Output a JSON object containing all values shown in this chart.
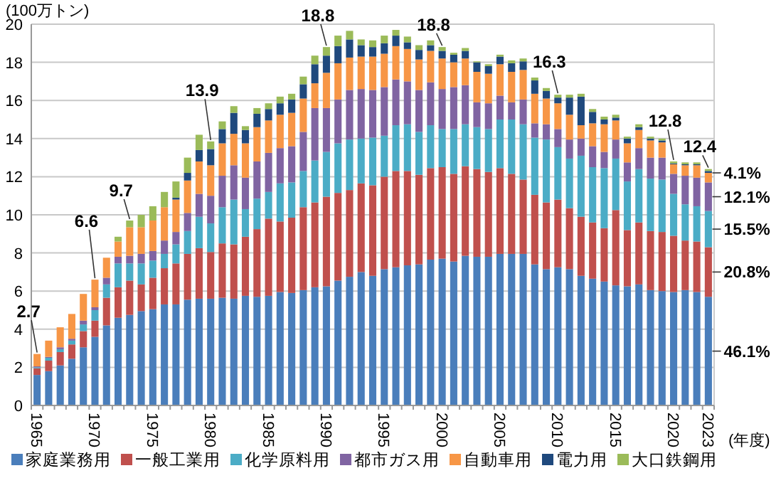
{
  "chart_data": {
    "type": "bar",
    "stacked": true,
    "ylabel": "(100万トン)",
    "xlabel": "(年度)",
    "categories": [
      "1965",
      null,
      null,
      null,
      null,
      "1970",
      null,
      null,
      null,
      null,
      "1975",
      null,
      null,
      null,
      null,
      "1980",
      null,
      null,
      null,
      null,
      "1985",
      null,
      null,
      null,
      null,
      "1990",
      null,
      null,
      null,
      null,
      "1995",
      null,
      null,
      null,
      null,
      "2000",
      null,
      null,
      null,
      null,
      "2005",
      null,
      null,
      null,
      null,
      "2010",
      null,
      null,
      null,
      null,
      "2015",
      null,
      null,
      null,
      null,
      "2020",
      null,
      null,
      "2023"
    ],
    "ylim": [
      0,
      20
    ],
    "yticks": [
      0,
      2,
      4,
      6,
      8,
      10,
      12,
      14,
      16,
      18,
      20
    ],
    "grid": "y",
    "legend": "bottom",
    "series": [
      {
        "name": "家庭業務用",
        "color": "#4a7ebb",
        "values": [
          1.6,
          1.8,
          2.1,
          2.45,
          3.05,
          3.6,
          4.2,
          4.6,
          4.75,
          4.95,
          5.05,
          5.3,
          5.3,
          5.55,
          5.6,
          5.6,
          5.65,
          5.6,
          5.75,
          5.7,
          5.75,
          5.95,
          5.9,
          6.05,
          6.2,
          6.25,
          6.55,
          6.75,
          7.0,
          6.8,
          7.15,
          7.25,
          7.35,
          7.4,
          7.65,
          7.7,
          7.55,
          7.85,
          7.8,
          7.8,
          7.95,
          7.95,
          7.95,
          7.4,
          7.15,
          7.25,
          7.15,
          6.8,
          6.65,
          6.5,
          6.3,
          6.25,
          6.35,
          6.05,
          6.0,
          5.95,
          6.05,
          5.95,
          5.7
        ]
      },
      {
        "name": "一般工業用",
        "color": "#c0504d",
        "values": [
          0.35,
          0.55,
          0.7,
          0.75,
          0.85,
          0.85,
          1.45,
          1.6,
          1.8,
          1.4,
          1.65,
          1.9,
          2.15,
          2.4,
          2.65,
          2.45,
          2.85,
          2.85,
          3.1,
          3.55,
          4.05,
          3.7,
          3.95,
          4.35,
          4.45,
          4.7,
          4.6,
          4.55,
          4.65,
          4.75,
          4.85,
          5.05,
          4.95,
          4.7,
          4.8,
          4.8,
          4.6,
          4.7,
          4.6,
          4.45,
          4.5,
          4.2,
          3.9,
          3.65,
          3.5,
          3.55,
          3.2,
          3.1,
          2.95,
          2.8,
          3.95,
          2.95,
          3.25,
          3.1,
          3.1,
          2.95,
          2.6,
          2.65,
          2.6
        ]
      },
      {
        "name": "化学原料用",
        "color": "#4bacc6",
        "values": [
          0.05,
          0.15,
          0.15,
          0.2,
          0.35,
          0.55,
          0.7,
          1.25,
          0.9,
          1.1,
          0.9,
          0.75,
          1.0,
          1.2,
          1.65,
          1.5,
          1.9,
          2.35,
          1.45,
          1.6,
          1.4,
          2.0,
          1.85,
          1.9,
          2.2,
          2.35,
          2.6,
          2.65,
          2.35,
          2.5,
          2.15,
          2.4,
          2.45,
          2.25,
          2.25,
          2.0,
          2.35,
          2.2,
          2.2,
          2.25,
          2.55,
          2.85,
          2.9,
          3.0,
          3.3,
          2.75,
          2.6,
          3.2,
          2.9,
          3.15,
          2.7,
          2.55,
          2.8,
          2.75,
          2.75,
          2.2,
          1.9,
          1.85,
          1.9
        ]
      },
      {
        "name": "都市ガス用",
        "color": "#8064a2",
        "values": [
          0.05,
          0.05,
          0.1,
          0.1,
          0.2,
          0.15,
          0.35,
          0.35,
          0.4,
          0.5,
          0.5,
          0.7,
          0.65,
          0.95,
          1.2,
          1.45,
          1.65,
          1.8,
          1.65,
          1.95,
          2.05,
          1.85,
          1.9,
          2.05,
          2.75,
          2.3,
          2.3,
          2.6,
          2.6,
          2.5,
          2.55,
          2.4,
          2.25,
          2.2,
          2.25,
          2.1,
          2.2,
          2.05,
          1.3,
          1.35,
          1.25,
          0.9,
          1.3,
          0.75,
          0.8,
          0.95,
          1.0,
          0.9,
          1.1,
          0.85,
          1.0,
          1.0,
          1.1,
          1.1,
          1.15,
          1.05,
          1.5,
          1.5,
          1.5
        ]
      },
      {
        "name": "自動車用",
        "color": "#f79646",
        "values": [
          0.65,
          0.85,
          1.05,
          1.3,
          1.4,
          1.45,
          1.05,
          0.8,
          1.5,
          1.4,
          1.6,
          1.75,
          1.7,
          1.7,
          1.7,
          1.6,
          1.7,
          1.65,
          1.8,
          1.8,
          1.7,
          1.75,
          1.75,
          1.75,
          1.3,
          1.85,
          1.9,
          1.7,
          1.7,
          1.75,
          1.75,
          1.75,
          1.7,
          1.6,
          1.65,
          1.6,
          1.3,
          1.4,
          1.6,
          1.55,
          1.65,
          1.6,
          1.55,
          1.55,
          1.35,
          1.35,
          1.3,
          0.7,
          1.2,
          1.45,
          1.0,
          1.0,
          0.95,
          0.9,
          0.8,
          0.5,
          0.55,
          0.65,
          0.5
        ]
      },
      {
        "name": "電力用",
        "color": "#1f497d",
        "values": [
          0,
          0,
          0,
          0,
          0,
          0,
          0,
          0,
          0,
          0,
          0,
          0,
          0.1,
          0.4,
          0.6,
          0.85,
          0.75,
          1.1,
          0.7,
          0.7,
          0.6,
          0.6,
          0.7,
          0.75,
          1.0,
          0.9,
          0.9,
          0.95,
          0.6,
          0.5,
          0.55,
          0.55,
          0.35,
          0.5,
          0.3,
          0.4,
          0.4,
          0.4,
          0.5,
          0.4,
          0.4,
          0.45,
          0.45,
          0.7,
          0.4,
          0.3,
          0.9,
          1.5,
          0.6,
          0.25,
          0.15,
          0.25,
          0.15,
          0.1,
          0.1,
          0.05,
          0.05,
          0.05,
          0.1
        ]
      },
      {
        "name": "大口鉄鋼用",
        "color": "#9bbb59",
        "values": [
          0,
          0,
          0,
          0,
          0,
          0,
          0,
          0.25,
          0.35,
          0.65,
          0.75,
          0.8,
          0.85,
          0.8,
          0.8,
          0.4,
          0.4,
          0.35,
          0.2,
          0.3,
          0.3,
          0.35,
          0.3,
          0.4,
          0.45,
          0.45,
          0.55,
          0.45,
          0.3,
          0.35,
          0.4,
          0.3,
          0.3,
          0.25,
          0.25,
          0.2,
          0.1,
          0.15,
          0.05,
          0.1,
          0.1,
          0.15,
          0.15,
          0.15,
          0.15,
          0.15,
          0.15,
          0.15,
          0.15,
          0.15,
          0.15,
          0.1,
          0.15,
          0.1,
          0.1,
          0.1,
          0.1,
          0.1,
          0.1
        ]
      }
    ],
    "totals": [
      "2.7",
      null,
      null,
      null,
      null,
      "6.6",
      null,
      null,
      "9.7",
      null,
      null,
      null,
      null,
      null,
      null,
      "13.9",
      null,
      null,
      null,
      null,
      null,
      null,
      null,
      null,
      null,
      "18.8",
      null,
      null,
      null,
      null,
      null,
      null,
      null,
      null,
      null,
      "18.8",
      null,
      null,
      null,
      null,
      null,
      null,
      null,
      null,
      null,
      "16.3",
      null,
      null,
      null,
      null,
      null,
      null,
      null,
      null,
      null,
      "12.8",
      null,
      null,
      "12.4"
    ],
    "annotations": [
      {
        "text": "46.1%",
        "x": "2023",
        "y": 2.85
      },
      {
        "text": "20.8%",
        "x": "2023",
        "y": 7.0
      },
      {
        "text": "15.5%",
        "x": "2023",
        "y": 9.25
      },
      {
        "text": "12.1%",
        "x": "2023",
        "y": 10.95
      },
      {
        "text": "4.1%",
        "x": "2023",
        "y": 12.2
      }
    ]
  }
}
